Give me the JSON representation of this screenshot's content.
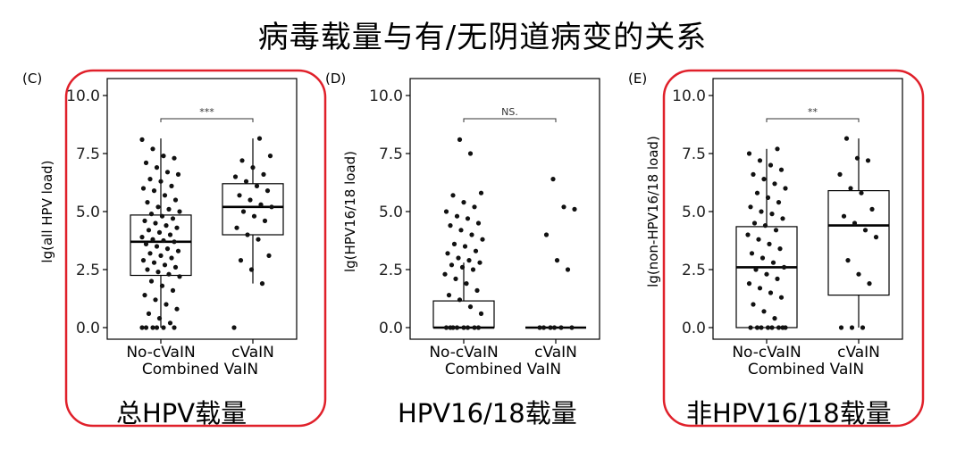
{
  "slide_title": "病毒载量与有/无阴道病变的关系",
  "highlight_color": "#e0202a",
  "chart_data": [
    {
      "type": "box",
      "panel_label": "(C)",
      "ylabel": "lg(all HPV load)",
      "xlabel": "Combined VaIN",
      "categories": [
        "No-cVaIN",
        "cVaIN"
      ],
      "ylim": [
        0,
        10
      ],
      "yticks": [
        "0.0",
        "2.5",
        "5.0",
        "7.5",
        "10.0"
      ],
      "significance": "***",
      "caption": "总HPV载量",
      "highlighted": true,
      "boxes": [
        {
          "min": 0.0,
          "q1": 2.25,
          "median": 3.7,
          "q3": 4.85,
          "max": 8.15
        },
        {
          "min": 1.9,
          "q1": 4.0,
          "median": 5.2,
          "q3": 6.2,
          "max": 8.15
        }
      ],
      "points": [
        [
          0,
          8.1
        ],
        [
          0,
          7.7
        ],
        [
          0,
          7.4
        ],
        [
          0,
          7.3
        ],
        [
          0,
          7.1
        ],
        [
          0,
          6.9
        ],
        [
          0,
          6.7
        ],
        [
          0,
          6.6
        ],
        [
          0,
          6.4
        ],
        [
          0,
          6.3
        ],
        [
          0,
          6.1
        ],
        [
          0,
          6.0
        ],
        [
          0,
          5.9
        ],
        [
          0,
          5.7
        ],
        [
          0,
          5.5
        ],
        [
          0,
          5.4
        ],
        [
          0,
          5.2
        ],
        [
          0,
          5.1
        ],
        [
          0,
          5.0
        ],
        [
          0,
          4.9
        ],
        [
          0,
          4.8
        ],
        [
          0,
          4.7
        ],
        [
          0,
          4.6
        ],
        [
          0,
          4.5
        ],
        [
          0,
          4.4
        ],
        [
          0,
          4.3
        ],
        [
          0,
          4.2
        ],
        [
          0,
          4.1
        ],
        [
          0,
          4.0
        ],
        [
          0,
          3.9
        ],
        [
          0,
          3.8
        ],
        [
          0,
          3.75
        ],
        [
          0,
          3.7
        ],
        [
          0,
          3.6
        ],
        [
          0,
          3.5
        ],
        [
          0,
          3.4
        ],
        [
          0,
          3.3
        ],
        [
          0,
          3.2
        ],
        [
          0,
          3.1
        ],
        [
          0,
          3.0
        ],
        [
          0,
          2.9
        ],
        [
          0,
          2.8
        ],
        [
          0,
          2.7
        ],
        [
          0,
          2.6
        ],
        [
          0,
          2.5
        ],
        [
          0,
          2.4
        ],
        [
          0,
          2.3
        ],
        [
          0,
          2.2
        ],
        [
          0,
          2.0
        ],
        [
          0,
          1.8
        ],
        [
          0,
          1.6
        ],
        [
          0,
          1.4
        ],
        [
          0,
          1.2
        ],
        [
          0,
          1.0
        ],
        [
          0,
          0.8
        ],
        [
          0,
          0.6
        ],
        [
          0,
          0.4
        ],
        [
          0,
          0.2
        ],
        [
          0,
          0.0
        ],
        [
          0,
          0.0
        ],
        [
          0,
          0.0
        ],
        [
          0,
          0.0
        ],
        [
          0,
          0.0
        ],
        [
          0,
          0.0
        ],
        [
          1,
          8.15
        ],
        [
          1,
          7.4
        ],
        [
          1,
          7.2
        ],
        [
          1,
          6.9
        ],
        [
          1,
          6.6
        ],
        [
          1,
          6.5
        ],
        [
          1,
          6.3
        ],
        [
          1,
          6.1
        ],
        [
          1,
          5.9
        ],
        [
          1,
          5.7
        ],
        [
          1,
          5.5
        ],
        [
          1,
          5.3
        ],
        [
          1,
          5.2
        ],
        [
          1,
          5.0
        ],
        [
          1,
          4.8
        ],
        [
          1,
          4.6
        ],
        [
          1,
          4.3
        ],
        [
          1,
          4.0
        ],
        [
          1,
          3.8
        ],
        [
          1,
          3.1
        ],
        [
          1,
          2.9
        ],
        [
          1,
          2.5
        ],
        [
          1,
          1.9
        ],
        [
          1,
          0.0
        ]
      ]
    },
    {
      "type": "box",
      "panel_label": "(D)",
      "ylabel": "lg(HPV16/18 load)",
      "xlabel": "Combined VaIN",
      "categories": [
        "No-cVaIN",
        "cVaIN"
      ],
      "ylim": [
        0,
        10
      ],
      "yticks": [
        "0.0",
        "2.5",
        "5.0",
        "7.5",
        "10.0"
      ],
      "significance": "NS.",
      "caption": "HPV16/18载量",
      "highlighted": false,
      "boxes": [
        {
          "min": 0.0,
          "q1": 0.0,
          "median": 0.0,
          "q3": 1.15,
          "max": 2.8
        },
        {
          "min": 0.0,
          "q1": 0.0,
          "median": 0.0,
          "q3": 0.0,
          "max": 0.0
        }
      ],
      "points": [
        [
          0,
          8.1
        ],
        [
          0,
          7.5
        ],
        [
          0,
          5.8
        ],
        [
          0,
          5.7
        ],
        [
          0,
          5.4
        ],
        [
          0,
          5.2
        ],
        [
          0,
          5.0
        ],
        [
          0,
          4.8
        ],
        [
          0,
          4.7
        ],
        [
          0,
          4.5
        ],
        [
          0,
          4.4
        ],
        [
          0,
          4.2
        ],
        [
          0,
          4.0
        ],
        [
          0,
          3.8
        ],
        [
          0,
          3.6
        ],
        [
          0,
          3.5
        ],
        [
          0,
          3.3
        ],
        [
          0,
          3.2
        ],
        [
          0,
          3.0
        ],
        [
          0,
          2.9
        ],
        [
          0,
          2.8
        ],
        [
          0,
          2.7
        ],
        [
          0,
          2.6
        ],
        [
          0,
          2.5
        ],
        [
          0,
          2.3
        ],
        [
          0,
          2.1
        ],
        [
          0,
          1.9
        ],
        [
          0,
          1.6
        ],
        [
          0,
          1.4
        ],
        [
          0,
          1.2
        ],
        [
          0,
          0.9
        ],
        [
          0,
          0.6
        ],
        [
          0,
          0.0
        ],
        [
          0,
          0.0
        ],
        [
          0,
          0.0
        ],
        [
          0,
          0.0
        ],
        [
          0,
          0.0
        ],
        [
          0,
          0.0
        ],
        [
          0,
          0.0
        ],
        [
          0,
          0.0
        ],
        [
          1,
          6.4
        ],
        [
          1,
          5.2
        ],
        [
          1,
          5.1
        ],
        [
          1,
          4.0
        ],
        [
          1,
          2.9
        ],
        [
          1,
          2.5
        ],
        [
          1,
          0.0
        ],
        [
          1,
          0.0
        ],
        [
          1,
          0.0
        ],
        [
          1,
          0.0
        ],
        [
          1,
          0.0
        ],
        [
          1,
          0.0
        ]
      ]
    },
    {
      "type": "box",
      "panel_label": "(E)",
      "ylabel": "lg(non-HPV16/18 load)",
      "xlabel": "Combined VaIN",
      "categories": [
        "No-cVaIN",
        "cVaIN"
      ],
      "ylim": [
        0,
        10
      ],
      "yticks": [
        "0.0",
        "2.5",
        "5.0",
        "7.5",
        "10.0"
      ],
      "significance": "**",
      "caption": "非HPV16/18载量",
      "highlighted": true,
      "boxes": [
        {
          "min": 0.0,
          "q1": 0.0,
          "median": 2.6,
          "q3": 4.35,
          "max": 7.7
        },
        {
          "min": 0.0,
          "q1": 1.4,
          "median": 4.4,
          "q3": 5.9,
          "max": 8.15
        }
      ],
      "points": [
        [
          0,
          7.7
        ],
        [
          0,
          7.5
        ],
        [
          0,
          7.2
        ],
        [
          0,
          7.0
        ],
        [
          0,
          6.8
        ],
        [
          0,
          6.6
        ],
        [
          0,
          6.4
        ],
        [
          0,
          6.2
        ],
        [
          0,
          6.0
        ],
        [
          0,
          5.8
        ],
        [
          0,
          5.6
        ],
        [
          0,
          5.4
        ],
        [
          0,
          5.2
        ],
        [
          0,
          5.0
        ],
        [
          0,
          4.9
        ],
        [
          0,
          4.7
        ],
        [
          0,
          4.5
        ],
        [
          0,
          4.4
        ],
        [
          0,
          4.2
        ],
        [
          0,
          4.0
        ],
        [
          0,
          3.8
        ],
        [
          0,
          3.6
        ],
        [
          0,
          3.4
        ],
        [
          0,
          3.2
        ],
        [
          0,
          3.0
        ],
        [
          0,
          2.8
        ],
        [
          0,
          2.6
        ],
        [
          0,
          2.5
        ],
        [
          0,
          2.3
        ],
        [
          0,
          2.1
        ],
        [
          0,
          1.9
        ],
        [
          0,
          1.7
        ],
        [
          0,
          1.5
        ],
        [
          0,
          1.3
        ],
        [
          0,
          1.0
        ],
        [
          0,
          0.7
        ],
        [
          0,
          0.4
        ],
        [
          0,
          0.0
        ],
        [
          0,
          0.0
        ],
        [
          0,
          0.0
        ],
        [
          0,
          0.0
        ],
        [
          0,
          0.0
        ],
        [
          0,
          0.0
        ],
        [
          0,
          0.0
        ],
        [
          0,
          0.0
        ],
        [
          1,
          8.15
        ],
        [
          1,
          7.3
        ],
        [
          1,
          7.2
        ],
        [
          1,
          6.6
        ],
        [
          1,
          6.0
        ],
        [
          1,
          5.8
        ],
        [
          1,
          5.1
        ],
        [
          1,
          4.8
        ],
        [
          1,
          4.5
        ],
        [
          1,
          4.2
        ],
        [
          1,
          3.9
        ],
        [
          1,
          2.9
        ],
        [
          1,
          2.3
        ],
        [
          1,
          1.9
        ],
        [
          1,
          0.0
        ],
        [
          1,
          0.0
        ],
        [
          1,
          0.0
        ]
      ]
    }
  ]
}
